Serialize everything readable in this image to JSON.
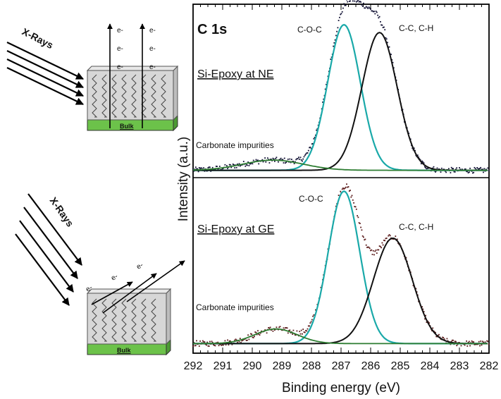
{
  "schematic": {
    "top": {
      "xray_label": "X-Rays",
      "electron_labels": [
        "e-",
        "e-",
        "e-",
        "e-",
        "e-",
        "e-"
      ],
      "substrate_label": "Bulk"
    },
    "bottom": {
      "xray_label": "X-Rays",
      "electron_labels": [
        "e-",
        "e-",
        "e-"
      ],
      "substrate_label": "Bulk"
    }
  },
  "colors": {
    "fit_teal": "#1aa9a9",
    "fit_black": "#111111",
    "fit_green": "#2e7d32",
    "data_top": "#101033",
    "data_bottom": "#5a1a1a",
    "substrate_green": "#6cc24a"
  },
  "chart_data": [
    {
      "type": "scatter",
      "panel_label": "C 1s",
      "sample_label": "Si-Epoxy at NE",
      "xlabel": "Binding energy (eV)",
      "ylabel": "Intensity (a.u.)",
      "xlim": [
        292,
        282
      ],
      "x_reversed": true,
      "xticks": [
        292,
        291,
        290,
        289,
        288,
        287,
        286,
        285,
        284,
        283,
        282
      ],
      "yticks": "none",
      "annotations": [
        "C-O-C",
        "C-C, C-H",
        "Carbonate impurities"
      ],
      "components": [
        {
          "label": "C-O-C",
          "center": 286.9,
          "height": 0.93,
          "fwhm": 1.3,
          "color": "teal"
        },
        {
          "label": "C-C, C-H",
          "center": 285.7,
          "height": 0.88,
          "fwhm": 1.4,
          "color": "black"
        },
        {
          "label": "Carbonate impurities",
          "center": 289.3,
          "height": 0.065,
          "fwhm": 2.4,
          "color": "green"
        }
      ],
      "background": 0.02,
      "envelope_peaks": {
        "C-O-C": [
          287.0,
          1.0
        ],
        "C-C, C-H": [
          285.6,
          0.96
        ]
      }
    },
    {
      "type": "scatter",
      "sample_label": "Si-Epoxy at GE",
      "xlabel": "Binding energy (eV)",
      "ylabel": "Intensity (a.u.)",
      "xlim": [
        292,
        282
      ],
      "x_reversed": true,
      "xticks": [
        292,
        291,
        290,
        289,
        288,
        287,
        286,
        285,
        284,
        283,
        282
      ],
      "yticks": "none",
      "annotations": [
        "C-O-C",
        "C-C, C-H",
        "Carbonate impurities"
      ],
      "components": [
        {
          "label": "C-O-C",
          "center": 286.9,
          "height": 0.94,
          "fwhm": 1.25,
          "color": "teal"
        },
        {
          "label": "C-C, C-H",
          "center": 285.25,
          "height": 0.65,
          "fwhm": 1.55,
          "color": "black"
        },
        {
          "label": "Carbonate impurities",
          "center": 289.2,
          "height": 0.09,
          "fwhm": 1.7,
          "color": "green"
        }
      ],
      "background": 0.02,
      "envelope_peaks": {
        "C-O-C": [
          286.9,
          1.0
        ],
        "C-C, C-H": [
          285.2,
          0.68
        ]
      }
    }
  ]
}
